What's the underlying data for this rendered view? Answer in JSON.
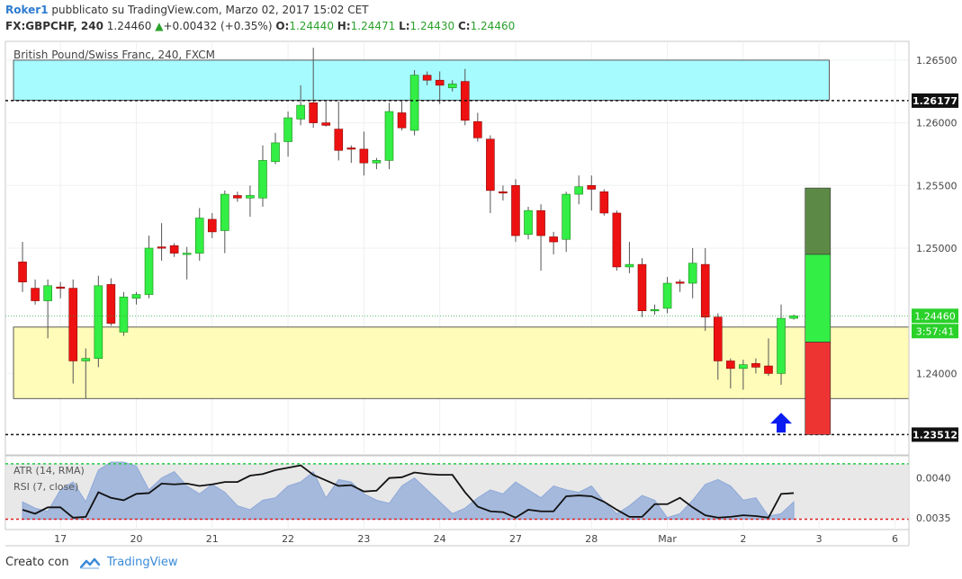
{
  "header": {
    "user": "Roker1",
    "published": "pubblicato su TradingView.com, Marzo 02, 2017 15:02 CET",
    "symbol": "FX:GBPCHF, 240",
    "last": "1.24460",
    "change_arrow": "▲",
    "change": "+0.00432 (+0.35%)",
    "o_label": "O:",
    "o_value": "1.24440",
    "h_label": "H:",
    "h_value": "1.24471",
    "l_label": "L:",
    "l_value": "1.24430",
    "c_label": "C:",
    "c_value": "1.24460"
  },
  "footer": {
    "created_with": "Creato con",
    "brand": "TradingView"
  },
  "colors": {
    "up": "#33ee44",
    "down": "#ee1111",
    "up_outline": "#1a8a1a",
    "down_outline": "#8a0a0a",
    "resistance_zone": "#a6fbff",
    "support_zone": "#fffbb8",
    "rsi_area": "#8fa9d8",
    "level_green": "#22cc44",
    "level_red": "#dd2222",
    "arrow": "#0a1cf0",
    "target_dark": "#5c8a46",
    "target_green": "#33ee44",
    "stop_red": "#ee3333"
  },
  "chart_data": [
    {
      "type": "candlestick",
      "title": "British Pound/Swiss Franc, 240, FXCM",
      "ylim": [
        1.2335,
        1.2665
      ],
      "yticks": [
        "1.26500",
        "1.26000",
        "1.25500",
        "1.25000",
        "1.24000"
      ],
      "xlim": [
        0,
        73
      ],
      "xticks": [
        {
          "label": "17",
          "x": 3.5
        },
        {
          "label": "20",
          "x": 9.5
        },
        {
          "label": "21",
          "x": 15.5
        },
        {
          "label": "22",
          "x": 21.5
        },
        {
          "label": "23",
          "x": 27.5
        },
        {
          "label": "24",
          "x": 33.5
        },
        {
          "label": "27",
          "x": 39.5
        },
        {
          "label": "28",
          "x": 45.5
        },
        {
          "label": "Mar",
          "x": 51.5
        },
        {
          "label": "2",
          "x": 57.5
        },
        {
          "label": "3",
          "x": 63.5
        },
        {
          "label": "6",
          "x": 69.5
        }
      ],
      "candles": [
        {
          "o": 1.2489,
          "h": 1.2505,
          "l": 1.2465,
          "c": 1.2473
        },
        {
          "o": 1.2468,
          "h": 1.2475,
          "l": 1.2455,
          "c": 1.2458
        },
        {
          "o": 1.2458,
          "h": 1.2475,
          "l": 1.2428,
          "c": 1.247
        },
        {
          "o": 1.2469,
          "h": 1.2473,
          "l": 1.246,
          "c": 1.2468
        },
        {
          "o": 1.2468,
          "h": 1.2475,
          "l": 1.2392,
          "c": 1.241
        },
        {
          "o": 1.241,
          "h": 1.242,
          "l": 1.238,
          "c": 1.2412
        },
        {
          "o": 1.2412,
          "h": 1.2478,
          "l": 1.2405,
          "c": 1.247
        },
        {
          "o": 1.2471,
          "h": 1.2476,
          "l": 1.2438,
          "c": 1.244
        },
        {
          "o": 1.2433,
          "h": 1.2465,
          "l": 1.243,
          "c": 1.2461
        },
        {
          "o": 1.246,
          "h": 1.2465,
          "l": 1.2455,
          "c": 1.2463
        },
        {
          "o": 1.2463,
          "h": 1.251,
          "l": 1.246,
          "c": 1.25
        },
        {
          "o": 1.2501,
          "h": 1.252,
          "l": 1.249,
          "c": 1.25
        },
        {
          "o": 1.2502,
          "h": 1.2504,
          "l": 1.2493,
          "c": 1.2496
        },
        {
          "o": 1.2495,
          "h": 1.2501,
          "l": 1.2475,
          "c": 1.2496
        },
        {
          "o": 1.2496,
          "h": 1.2532,
          "l": 1.249,
          "c": 1.2524
        },
        {
          "o": 1.2523,
          "h": 1.2528,
          "l": 1.2508,
          "c": 1.2513
        },
        {
          "o": 1.2514,
          "h": 1.2546,
          "l": 1.2496,
          "c": 1.2543
        },
        {
          "o": 1.2542,
          "h": 1.2545,
          "l": 1.2537,
          "c": 1.254
        },
        {
          "o": 1.254,
          "h": 1.255,
          "l": 1.2525,
          "c": 1.2542
        },
        {
          "o": 1.254,
          "h": 1.2582,
          "l": 1.2533,
          "c": 1.257
        },
        {
          "o": 1.2569,
          "h": 1.2592,
          "l": 1.2567,
          "c": 1.2584
        },
        {
          "o": 1.2585,
          "h": 1.2609,
          "l": 1.2573,
          "c": 1.2604
        },
        {
          "o": 1.2603,
          "h": 1.263,
          "l": 1.2598,
          "c": 1.2614
        },
        {
          "o": 1.2616,
          "h": 1.266,
          "l": 1.2596,
          "c": 1.26
        },
        {
          "o": 1.26,
          "h": 1.2617,
          "l": 1.2597,
          "c": 1.2598
        },
        {
          "o": 1.2595,
          "h": 1.2617,
          "l": 1.257,
          "c": 1.2578
        },
        {
          "o": 1.258,
          "h": 1.2582,
          "l": 1.2568,
          "c": 1.2579
        },
        {
          "o": 1.2579,
          "h": 1.2593,
          "l": 1.2558,
          "c": 1.2568
        },
        {
          "o": 1.2568,
          "h": 1.2572,
          "l": 1.2563,
          "c": 1.257
        },
        {
          "o": 1.257,
          "h": 1.2616,
          "l": 1.2563,
          "c": 1.2609
        },
        {
          "o": 1.2608,
          "h": 1.2617,
          "l": 1.2594,
          "c": 1.2596
        },
        {
          "o": 1.2594,
          "h": 1.2642,
          "l": 1.259,
          "c": 1.2638
        },
        {
          "o": 1.2638,
          "h": 1.2641,
          "l": 1.263,
          "c": 1.2634
        },
        {
          "o": 1.2634,
          "h": 1.2641,
          "l": 1.2615,
          "c": 1.263
        },
        {
          "o": 1.2628,
          "h": 1.2634,
          "l": 1.2625,
          "c": 1.2631
        },
        {
          "o": 1.2633,
          "h": 1.2643,
          "l": 1.2598,
          "c": 1.2602
        },
        {
          "o": 1.2601,
          "h": 1.2608,
          "l": 1.2585,
          "c": 1.2588
        },
        {
          "o": 1.2587,
          "h": 1.259,
          "l": 1.2528,
          "c": 1.2546
        },
        {
          "o": 1.2545,
          "h": 1.255,
          "l": 1.2538,
          "c": 1.2544
        },
        {
          "o": 1.255,
          "h": 1.2555,
          "l": 1.2505,
          "c": 1.251
        },
        {
          "o": 1.2511,
          "h": 1.2533,
          "l": 1.2507,
          "c": 1.253
        },
        {
          "o": 1.253,
          "h": 1.2535,
          "l": 1.2482,
          "c": 1.251
        },
        {
          "o": 1.2509,
          "h": 1.2513,
          "l": 1.2495,
          "c": 1.2505
        },
        {
          "o": 1.2507,
          "h": 1.2545,
          "l": 1.2497,
          "c": 1.2543
        },
        {
          "o": 1.2543,
          "h": 1.2558,
          "l": 1.2535,
          "c": 1.2549
        },
        {
          "o": 1.255,
          "h": 1.2558,
          "l": 1.253,
          "c": 1.2547
        },
        {
          "o": 1.2545,
          "h": 1.2547,
          "l": 1.2526,
          "c": 1.2528
        },
        {
          "o": 1.2528,
          "h": 1.253,
          "l": 1.2482,
          "c": 1.2485
        },
        {
          "o": 1.2485,
          "h": 1.2505,
          "l": 1.248,
          "c": 1.2487
        },
        {
          "o": 1.2487,
          "h": 1.2492,
          "l": 1.2445,
          "c": 1.245
        },
        {
          "o": 1.245,
          "h": 1.2455,
          "l": 1.2447,
          "c": 1.2451
        },
        {
          "o": 1.2452,
          "h": 1.2477,
          "l": 1.2448,
          "c": 1.2472
        },
        {
          "o": 1.2473,
          "h": 1.2475,
          "l": 1.2465,
          "c": 1.2472
        },
        {
          "o": 1.2472,
          "h": 1.25,
          "l": 1.246,
          "c": 1.2488
        },
        {
          "o": 1.2487,
          "h": 1.25,
          "l": 1.2434,
          "c": 1.2445
        },
        {
          "o": 1.2445,
          "h": 1.2448,
          "l": 1.2395,
          "c": 1.241
        },
        {
          "o": 1.241,
          "h": 1.2412,
          "l": 1.2388,
          "c": 1.2404
        },
        {
          "o": 1.2404,
          "h": 1.2411,
          "l": 1.2387,
          "c": 1.2407
        },
        {
          "o": 1.2408,
          "h": 1.2412,
          "l": 1.24,
          "c": 1.2405
        },
        {
          "o": 1.2406,
          "h": 1.2428,
          "l": 1.2398,
          "c": 1.24
        },
        {
          "o": 1.24,
          "h": 1.2455,
          "l": 1.2391,
          "c": 1.2444
        },
        {
          "o": 1.2444,
          "h": 1.2447,
          "l": 1.2443,
          "c": 1.2446
        }
      ],
      "last_price": 1.2446,
      "last_price_label": "1.24460",
      "countdown_label": "3:57:41",
      "zones": [
        {
          "name": "resistance",
          "x_start": 0,
          "x_end": 64.3,
          "y_low": 1.2618,
          "y_high": 1.265
        },
        {
          "name": "support",
          "x_start": 0,
          "x_end": 73,
          "y_low": 1.238,
          "y_high": 1.2437
        }
      ],
      "levels": [
        {
          "value": 1.26177,
          "label": "1.26177"
        },
        {
          "value": 1.23512,
          "label": "1.23512"
        }
      ],
      "position": {
        "x_start": 62.4,
        "x_end": 64.4,
        "target_high": 1.2548,
        "target_mid": 1.2495,
        "entry": 1.2425,
        "stop": 1.23512
      },
      "arrow": {
        "x": 60.5,
        "y": 1.236,
        "direction": "up"
      }
    },
    {
      "type": "line",
      "indicators": [
        "ATR (14, RMA)",
        "RSI (7, close)"
      ],
      "ylim": [
        0.00335,
        0.00428
      ],
      "yticks": [
        "0.0040",
        "0.0035"
      ],
      "upper_level": 0.00418,
      "lower_level": 0.00348,
      "rsi_area_x": [
        0,
        1,
        2,
        3,
        4,
        5,
        6,
        7,
        8,
        9,
        10,
        11,
        12,
        13,
        14,
        15,
        16,
        17,
        18,
        19,
        20,
        21,
        22,
        23,
        24,
        25,
        26,
        27,
        28,
        29,
        30,
        31,
        32,
        33,
        34,
        35,
        36,
        37,
        38,
        39,
        40,
        41,
        42,
        43,
        44,
        45,
        46,
        47,
        48,
        49,
        50,
        51,
        52,
        53,
        54,
        55,
        56,
        57,
        58,
        59,
        60,
        61
      ],
      "rsi_area_y": [
        0.0037,
        0.00362,
        0.00358,
        0.00385,
        0.00395,
        0.0037,
        0.0041,
        0.0042,
        0.0042,
        0.00415,
        0.00385,
        0.004,
        0.00408,
        0.0039,
        0.0038,
        0.00392,
        0.00382,
        0.00365,
        0.0036,
        0.00372,
        0.00375,
        0.0039,
        0.00395,
        0.00408,
        0.00375,
        0.00398,
        0.00395,
        0.0038,
        0.00372,
        0.00368,
        0.0039,
        0.004,
        0.00385,
        0.0037,
        0.00355,
        0.00362,
        0.00375,
        0.00385,
        0.0038,
        0.00395,
        0.00385,
        0.00375,
        0.0039,
        0.00385,
        0.00382,
        0.0039,
        0.0037,
        0.00355,
        0.00365,
        0.00378,
        0.00372,
        0.0035,
        0.00355,
        0.00372,
        0.00392,
        0.00398,
        0.0039,
        0.00372,
        0.00375,
        0.00352,
        0.00355,
        0.0037
      ],
      "atr_x": [
        0,
        1,
        2,
        3,
        4,
        5,
        6,
        7,
        8,
        9,
        10,
        11,
        12,
        13,
        14,
        15,
        16,
        17,
        18,
        19,
        20,
        21,
        22,
        23,
        24,
        25,
        26,
        27,
        28,
        29,
        30,
        31,
        32,
        33,
        34,
        35,
        36,
        37,
        38,
        39,
        40,
        41,
        42,
        43,
        44,
        45,
        46,
        47,
        48,
        49,
        50,
        51,
        52,
        53,
        54,
        55,
        56,
        57,
        58,
        59,
        60,
        61
      ],
      "atr_y": [
        0.0036,
        0.00355,
        0.00363,
        0.00363,
        0.0035,
        0.00351,
        0.00382,
        0.00375,
        0.00372,
        0.0038,
        0.00381,
        0.00393,
        0.00392,
        0.00393,
        0.0039,
        0.00392,
        0.00395,
        0.00395,
        0.00403,
        0.00405,
        0.0041,
        0.00413,
        0.00416,
        0.00404,
        0.00397,
        0.0039,
        0.00391,
        0.00383,
        0.00384,
        0.004,
        0.00401,
        0.00407,
        0.00405,
        0.00404,
        0.00404,
        0.00382,
        0.00364,
        0.00358,
        0.00357,
        0.0035,
        0.0036,
        0.00358,
        0.00358,
        0.00377,
        0.00378,
        0.00377,
        0.0037,
        0.0036,
        0.00351,
        0.00351,
        0.00367,
        0.00367,
        0.00375,
        0.00363,
        0.00353,
        0.0035,
        0.00351,
        0.00353,
        0.00352,
        0.0035,
        0.0038,
        0.00381
      ]
    }
  ]
}
